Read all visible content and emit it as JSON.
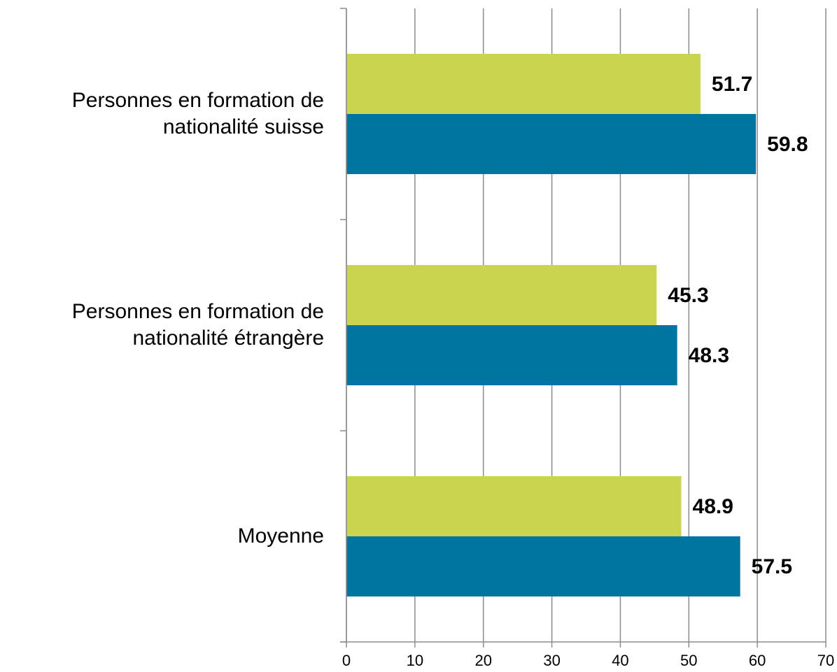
{
  "chart_data": {
    "type": "bar",
    "orientation": "horizontal",
    "categories": [
      "Personnes en formation de nationalité suisse",
      "Personnes en formation de nationalité étrangère",
      "Moyenne"
    ],
    "series": [
      {
        "color": "#c9d450",
        "values": [
          51.7,
          45.3,
          48.9
        ]
      },
      {
        "color": "#0075a0",
        "values": [
          59.8,
          48.3,
          57.5
        ]
      }
    ],
    "xlim": [
      0,
      70
    ],
    "xticks": [
      0,
      10,
      20,
      30,
      40,
      50,
      60,
      70
    ],
    "grid": true
  }
}
